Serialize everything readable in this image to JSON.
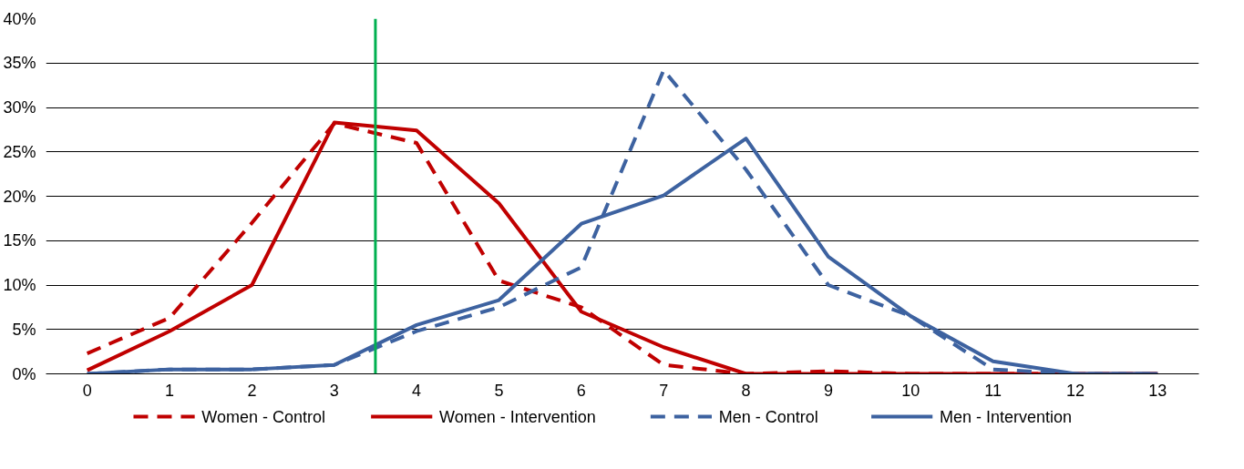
{
  "chart_data": {
    "type": "line",
    "x": [
      0,
      1,
      2,
      3,
      4,
      5,
      6,
      7,
      8,
      9,
      10,
      11,
      12,
      13
    ],
    "series": [
      {
        "name": "Women -  Control",
        "color": "#c00000",
        "line_style": "dashed",
        "values": [
          2.3,
          6.3,
          17,
          28.2,
          26,
          10.5,
          7.5,
          1,
          0,
          0.3,
          0,
          0,
          0,
          0
        ]
      },
      {
        "name": "Women -  Intervention",
        "color": "#c00000",
        "line_style": "solid",
        "values": [
          0.4,
          4.8,
          10,
          28.3,
          27.4,
          19.2,
          7,
          3,
          0,
          0,
          0,
          0,
          0,
          0
        ]
      },
      {
        "name": "Men -  Control",
        "color": "#3d62a0",
        "line_style": "dashed",
        "values": [
          0,
          0.5,
          0.5,
          1,
          4.8,
          7.5,
          12,
          34.2,
          23,
          10,
          6.5,
          0.5,
          0,
          0
        ]
      },
      {
        "name": "Men -  Intervention",
        "color": "#3d62a0",
        "line_style": "solid",
        "values": [
          0,
          0.5,
          0.5,
          1,
          5.5,
          8.3,
          16.9,
          20.1,
          26.5,
          13.2,
          6.5,
          1.4,
          0,
          0
        ]
      }
    ],
    "xlim": [
      -0.5,
      13.5
    ],
    "xticks": [
      0,
      1,
      2,
      3,
      4,
      5,
      6,
      7,
      8,
      9,
      10,
      11,
      12,
      13
    ],
    "ylim": [
      0,
      40
    ],
    "yticks": [
      {
        "value": 0,
        "label": "0%"
      },
      {
        "value": 5,
        "label": "5%"
      },
      {
        "value": 10,
        "label": "10%"
      },
      {
        "value": 15,
        "label": "15%"
      },
      {
        "value": 20,
        "label": "20%"
      },
      {
        "value": 25,
        "label": "25%"
      },
      {
        "value": 30,
        "label": "30%"
      },
      {
        "value": 35,
        "label": "35%"
      },
      {
        "value": 40,
        "label": "40%"
      }
    ],
    "ref_lines": [
      {
        "axis": "x",
        "value": 3.5,
        "label": null,
        "color": "#00b050"
      }
    ],
    "grid": "y",
    "legend": "bottom",
    "marker": "none"
  }
}
